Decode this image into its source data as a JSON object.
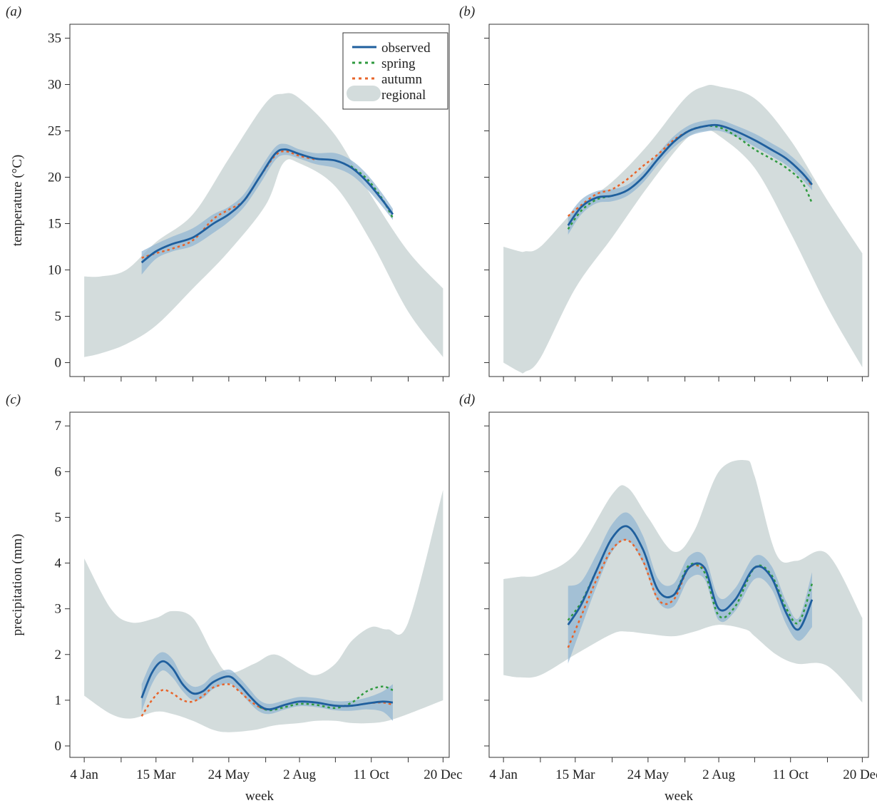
{
  "colors": {
    "observed": "#1f5f9e",
    "observed_band": "#8fb3d1",
    "spring": "#2f9a3f",
    "autumn": "#e8642a",
    "regional": "#d3dcdc"
  },
  "legend": {
    "observed": "observed",
    "spring": "spring",
    "autumn": "autumn",
    "regional": "regional"
  },
  "x_axis": {
    "label": "week",
    "range": [
      -10,
      360
    ],
    "tick_positions": [
      4,
      40,
      74,
      110,
      145,
      181,
      214,
      249,
      284,
      320,
      354
    ],
    "labeled_ticks": [
      {
        "x": 4,
        "label": "4 Jan"
      },
      {
        "x": 74,
        "label": "15 Mar"
      },
      {
        "x": 145,
        "label": "24 May"
      },
      {
        "x": 214,
        "label": "2 Aug"
      },
      {
        "x": 284,
        "label": "11 Oct"
      },
      {
        "x": 354,
        "label": "20 Dec"
      }
    ]
  },
  "chart_data": [
    {
      "panel": "(a)",
      "type": "line",
      "ylabel": "temperature (°C)",
      "ylim": [
        -1.5,
        36.5
      ],
      "yticks": [
        0,
        5,
        10,
        15,
        20,
        25,
        30,
        35
      ],
      "legend_position": "top-right",
      "regional": {
        "x": [
          4,
          20,
          45,
          74,
          110,
          145,
          181,
          198,
          214,
          249,
          284,
          320,
          354
        ],
        "lower": [
          0.6,
          1.0,
          2.0,
          4.0,
          8.0,
          12.0,
          17.0,
          21.5,
          21.5,
          19.0,
          13.0,
          5.5,
          0.6
        ],
        "upper": [
          9.3,
          9.3,
          10.0,
          13.0,
          16.0,
          22.0,
          28.0,
          29.0,
          28.5,
          24.5,
          18.0,
          12.0,
          8.0
        ]
      },
      "observed": {
        "x": [
          60,
          74,
          90,
          110,
          130,
          145,
          160,
          175,
          190,
          200,
          214,
          230,
          249,
          265,
          280,
          295,
          305
        ],
        "y": [
          10.8,
          12.0,
          12.8,
          13.5,
          15.0,
          16.0,
          17.5,
          20.0,
          22.5,
          23.0,
          22.5,
          22.0,
          21.8,
          21.0,
          19.5,
          17.5,
          16.0
        ],
        "lower": [
          9.5,
          11.2,
          12.0,
          12.6,
          14.0,
          15.2,
          16.8,
          19.2,
          21.8,
          22.4,
          22.0,
          21.4,
          21.0,
          20.2,
          18.7,
          16.8,
          15.4
        ],
        "upper": [
          12.0,
          12.8,
          13.6,
          14.5,
          16.0,
          16.8,
          18.2,
          20.8,
          23.2,
          23.6,
          23.0,
          22.6,
          22.6,
          21.8,
          20.3,
          18.2,
          16.6
        ]
      },
      "spring": {
        "x": [
          264,
          280,
          295,
          305
        ],
        "y": [
          21.2,
          19.8,
          17.6,
          15.6
        ]
      },
      "autumn": {
        "x": [
          60,
          74,
          90,
          110,
          130,
          145,
          160,
          175,
          190,
          200,
          214,
          230
        ],
        "y": [
          11.3,
          11.8,
          12.3,
          13.2,
          15.5,
          16.5,
          17.5,
          20.0,
          22.3,
          22.8,
          22.3,
          21.9
        ]
      }
    },
    {
      "panel": "(b)",
      "type": "line",
      "ylabel": "",
      "ylim": [
        -1.5,
        36.5
      ],
      "yticks": [
        0,
        5,
        10,
        15,
        20,
        25,
        30,
        35
      ],
      "regional": {
        "x": [
          4,
          20,
          25,
          40,
          74,
          110,
          145,
          181,
          200,
          214,
          249,
          284,
          320,
          354
        ],
        "lower": [
          0.0,
          -1.0,
          -1.0,
          0.5,
          8.0,
          13.5,
          19.0,
          24.0,
          25.0,
          24.5,
          21.0,
          14.0,
          6.0,
          -0.5
        ],
        "upper": [
          12.5,
          12.0,
          12.0,
          12.5,
          16.5,
          19.5,
          23.5,
          28.5,
          29.8,
          29.8,
          28.5,
          24.0,
          17.5,
          11.8
        ]
      },
      "observed": {
        "x": [
          67,
          80,
          95,
          110,
          125,
          140,
          155,
          170,
          185,
          200,
          214,
          230,
          249,
          265,
          280,
          295,
          305
        ],
        "y": [
          14.8,
          16.8,
          17.8,
          18.0,
          18.6,
          20.0,
          22.0,
          23.8,
          25.0,
          25.5,
          25.6,
          25.0,
          24.0,
          23.0,
          22.0,
          20.5,
          19.2
        ],
        "lower": [
          13.8,
          16.0,
          17.2,
          17.4,
          18.0,
          19.4,
          21.4,
          23.2,
          24.4,
          24.9,
          25.0,
          24.4,
          23.3,
          22.3,
          21.3,
          19.8,
          18.6
        ],
        "upper": [
          15.8,
          17.6,
          18.5,
          18.7,
          19.2,
          20.6,
          22.6,
          24.4,
          25.6,
          26.1,
          26.2,
          25.6,
          24.7,
          23.7,
          22.7,
          21.2,
          19.8
        ]
      },
      "spring": {
        "x": [
          67,
          80,
          95,
          110,
          125,
          140,
          155,
          170,
          185,
          200,
          214,
          230,
          249,
          265,
          280,
          295,
          305
        ],
        "y": [
          14.4,
          16.4,
          17.6,
          18.0,
          18.6,
          20.0,
          22.0,
          23.8,
          25.0,
          25.5,
          25.4,
          24.5,
          23.0,
          22.0,
          21.0,
          19.5,
          17.2
        ]
      },
      "autumn": {
        "x": [
          67,
          80,
          95,
          110,
          125,
          140,
          155,
          170,
          185,
          200,
          214,
          230,
          249,
          265,
          280,
          295,
          305
        ],
        "y": [
          15.8,
          17.0,
          18.2,
          18.7,
          19.8,
          21.2,
          22.5,
          24.0,
          25.0,
          25.5,
          25.6,
          25.0,
          24.0,
          23.0,
          22.0,
          20.5,
          19.0
        ]
      }
    },
    {
      "panel": "(c)",
      "type": "line",
      "ylabel": "precipitation (mm)",
      "ylim": [
        -0.25,
        7.3
      ],
      "yticks": [
        0,
        1,
        2,
        3,
        4,
        5,
        6,
        7
      ],
      "regional": {
        "x": [
          4,
          30,
          50,
          74,
          90,
          110,
          130,
          145,
          170,
          190,
          214,
          230,
          249,
          265,
          284,
          300,
          320,
          354
        ],
        "lower": [
          1.1,
          0.7,
          0.6,
          0.75,
          0.7,
          0.55,
          0.35,
          0.3,
          0.35,
          0.45,
          0.5,
          0.55,
          0.55,
          0.5,
          0.5,
          0.55,
          0.7,
          1.0
        ],
        "upper": [
          4.1,
          3.0,
          2.7,
          2.8,
          2.95,
          2.8,
          2.0,
          1.6,
          1.8,
          2.0,
          1.7,
          1.55,
          1.8,
          2.3,
          2.6,
          2.55,
          2.7,
          5.6
        ]
      },
      "observed": {
        "x": [
          60,
          70,
          80,
          90,
          100,
          110,
          120,
          130,
          145,
          155,
          165,
          175,
          185,
          200,
          214,
          230,
          249,
          265,
          280,
          295,
          305
        ],
        "y": [
          1.05,
          1.6,
          1.85,
          1.7,
          1.35,
          1.15,
          1.2,
          1.4,
          1.52,
          1.35,
          1.1,
          0.88,
          0.8,
          0.9,
          0.97,
          0.95,
          0.88,
          0.88,
          0.93,
          0.97,
          0.95
        ],
        "lower": [
          0.75,
          1.35,
          1.65,
          1.5,
          1.2,
          1.0,
          1.05,
          1.25,
          1.37,
          1.2,
          0.95,
          0.75,
          0.7,
          0.8,
          0.87,
          0.85,
          0.78,
          0.77,
          0.8,
          0.75,
          0.55
        ],
        "upper": [
          1.35,
          1.85,
          2.05,
          1.9,
          1.5,
          1.3,
          1.35,
          1.55,
          1.67,
          1.5,
          1.25,
          1.0,
          0.92,
          1.0,
          1.07,
          1.05,
          0.98,
          0.99,
          1.06,
          1.19,
          1.35
        ]
      },
      "spring": {
        "x": [
          175,
          185,
          200,
          214,
          230,
          249,
          265,
          280,
          295,
          305
        ],
        "y": [
          0.85,
          0.78,
          0.85,
          0.92,
          0.9,
          0.83,
          0.95,
          1.2,
          1.3,
          1.22
        ]
      },
      "autumn": {
        "x": [
          60,
          70,
          80,
          90,
          100,
          110,
          120,
          130,
          145,
          155,
          165,
          175,
          185,
          200,
          214,
          230,
          249,
          265,
          280,
          295,
          305
        ],
        "y": [
          0.65,
          1.0,
          1.22,
          1.15,
          1.0,
          0.97,
          1.1,
          1.28,
          1.35,
          1.2,
          1.0,
          0.85,
          0.8,
          0.9,
          0.97,
          0.95,
          0.88,
          0.88,
          0.93,
          0.95,
          0.9
        ]
      }
    },
    {
      "panel": "(d)",
      "type": "line",
      "ylabel": "",
      "ylim": [
        -0.25,
        7.3
      ],
      "yticks": [
        0,
        1,
        2,
        3,
        4,
        5,
        6,
        7
      ],
      "regional": {
        "x": [
          4,
          20,
          40,
          74,
          110,
          125,
          145,
          170,
          190,
          214,
          240,
          249,
          270,
          290,
          320,
          354
        ],
        "lower": [
          1.55,
          1.5,
          1.55,
          2.0,
          2.45,
          2.5,
          2.45,
          2.4,
          2.5,
          2.65,
          2.55,
          2.4,
          2.0,
          1.8,
          1.75,
          0.95
        ],
        "upper": [
          3.65,
          3.7,
          3.75,
          4.2,
          5.5,
          5.65,
          5.0,
          4.25,
          4.7,
          6.0,
          6.25,
          5.9,
          4.2,
          4.05,
          4.2,
          2.8
        ]
      },
      "observed": {
        "x": [
          67,
          80,
          95,
          110,
          125,
          140,
          155,
          170,
          185,
          200,
          214,
          230,
          249,
          265,
          280,
          292,
          305
        ],
        "y": [
          2.65,
          3.1,
          3.85,
          4.55,
          4.8,
          4.3,
          3.4,
          3.3,
          3.9,
          3.9,
          3.0,
          3.2,
          3.9,
          3.7,
          2.9,
          2.55,
          3.2
        ],
        "lower": [
          1.8,
          2.6,
          3.5,
          4.25,
          4.5,
          4.0,
          3.15,
          3.05,
          3.65,
          3.65,
          2.75,
          2.95,
          3.65,
          3.45,
          2.65,
          2.3,
          2.6
        ],
        "upper": [
          3.5,
          3.6,
          4.2,
          4.85,
          5.1,
          4.6,
          3.65,
          3.55,
          4.15,
          4.15,
          3.25,
          3.45,
          4.15,
          3.95,
          3.15,
          2.8,
          3.8
        ]
      },
      "spring": {
        "x": [
          67,
          80,
          95,
          110,
          125,
          140,
          155,
          170,
          185,
          200,
          214,
          230,
          249,
          265,
          280,
          292,
          305
        ],
        "y": [
          2.75,
          3.15,
          3.85,
          4.55,
          4.8,
          4.3,
          3.4,
          3.3,
          3.95,
          3.8,
          2.85,
          3.05,
          3.9,
          3.75,
          3.0,
          2.7,
          3.55
        ]
      },
      "autumn": {
        "x": [
          67,
          80,
          95,
          110,
          125,
          140,
          155,
          170,
          185,
          200
        ],
        "y": [
          2.15,
          2.85,
          3.65,
          4.3,
          4.5,
          4.05,
          3.2,
          3.2,
          3.9,
          3.9
        ]
      }
    }
  ]
}
